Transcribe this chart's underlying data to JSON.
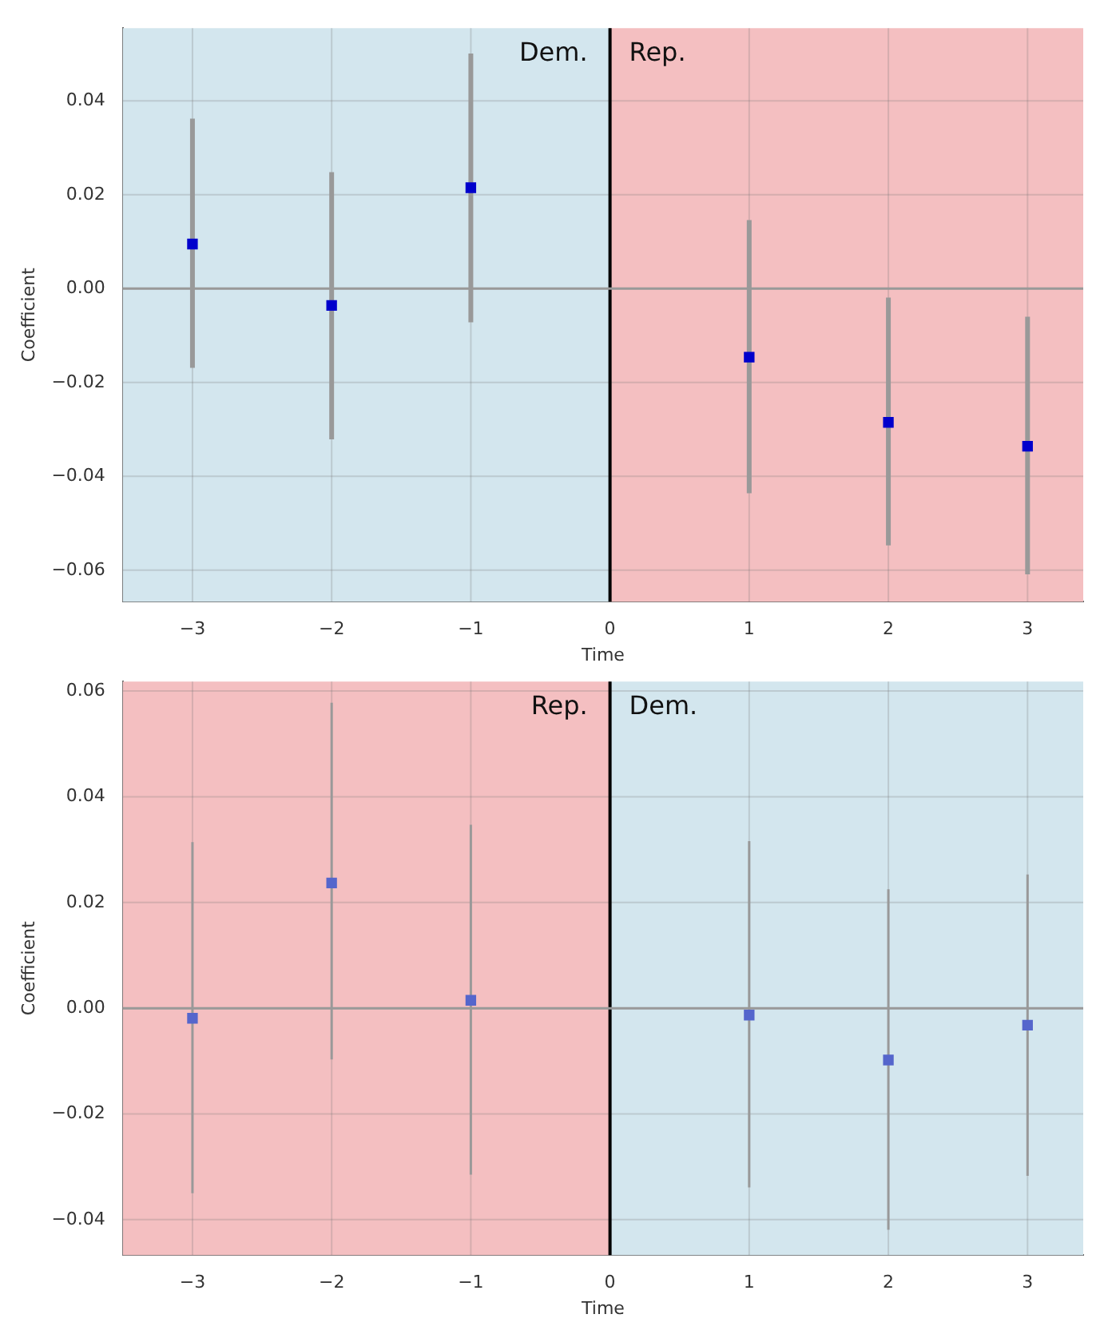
{
  "chart_data": [
    {
      "type": "scatter",
      "xlabel": "Time",
      "ylabel": "Coefficient",
      "x": [
        -3,
        -2,
        -1,
        1,
        2,
        3
      ],
      "series": [
        {
          "color": "#0000cc",
          "values": [
            0.0095,
            -0.0036,
            0.0215,
            -0.0146,
            -0.0285,
            -0.0336
          ],
          "errors": [
            [
              -0.0169,
              0.0362
            ],
            [
              -0.0321,
              0.0248
            ],
            [
              -0.0072,
              0.0501
            ],
            [
              -0.0436,
              0.0146
            ],
            [
              -0.0547,
              -0.0019
            ],
            [
              -0.0609,
              -0.006
            ]
          ]
        }
      ],
      "xlim": [
        -3.5,
        3.4
      ],
      "xticks": [
        -3,
        -2,
        -1,
        0,
        1,
        2,
        3
      ],
      "ylim": [
        -0.0667,
        0.0555
      ],
      "yticks": [
        -0.06,
        -0.04,
        -0.02,
        {
          "value": 0,
          "label": "0.00"
        },
        0.02,
        0.04
      ],
      "bands": [
        {
          "axis": "x",
          "from": -3.5,
          "to": 0,
          "label": "Dem.",
          "color": "#d3e6ee"
        },
        {
          "axis": "x",
          "from": 0,
          "to": 3.4,
          "label": "Rep.",
          "color": "#f4bfc1"
        }
      ],
      "ref_lines": [
        {
          "axis": "x",
          "value": 0,
          "color": "#000000"
        },
        {
          "axis": "y",
          "value": 0,
          "color": "#999999"
        }
      ],
      "grid": true,
      "marker": "square",
      "legend": false
    },
    {
      "type": "scatter",
      "xlabel": "Time",
      "ylabel": "Coefficient",
      "x": [
        -3,
        -2,
        -1,
        1,
        2,
        3
      ],
      "series": [
        {
          "color": "#5566cc",
          "values": [
            -0.0019,
            0.0237,
            0.0015,
            -0.0013,
            -0.0098,
            -0.0032
          ],
          "errors": [
            [
              -0.035,
              0.0314
            ],
            [
              -0.0097,
              0.0578
            ],
            [
              -0.0315,
              0.0347
            ],
            [
              -0.0339,
              0.0316
            ],
            [
              -0.0419,
              0.0225
            ],
            [
              -0.0317,
              0.0253
            ]
          ]
        }
      ],
      "xlim": [
        -3.5,
        3.4
      ],
      "xticks": [
        -3,
        -2,
        -1,
        0,
        1,
        2,
        3
      ],
      "ylim": [
        -0.0467,
        0.0618
      ],
      "yticks": [
        -0.04,
        -0.02,
        {
          "value": 0,
          "label": "0.00"
        },
        0.02,
        0.04,
        0.06
      ],
      "bands": [
        {
          "axis": "x",
          "from": -3.5,
          "to": 0,
          "label": "Rep.",
          "color": "#f4bfc1"
        },
        {
          "axis": "x",
          "from": 0,
          "to": 3.4,
          "label": "Dem.",
          "color": "#d3e6ee"
        }
      ],
      "ref_lines": [
        {
          "axis": "x",
          "value": 0,
          "color": "#000000"
        },
        {
          "axis": "y",
          "value": 0,
          "color": "#999999"
        }
      ],
      "grid": true,
      "marker": "square",
      "legend": false
    }
  ]
}
